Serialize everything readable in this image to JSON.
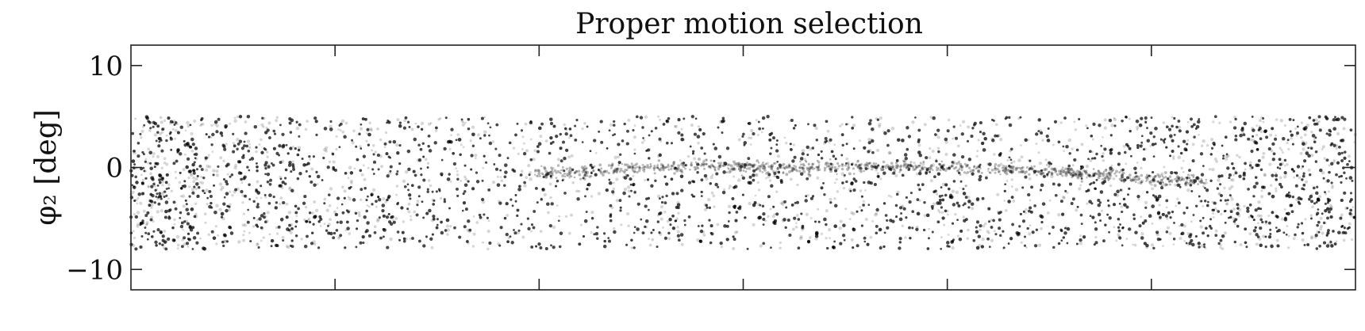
{
  "chart_data": {
    "type": "scatter",
    "title": "Proper motion selection",
    "xlabel": "",
    "ylabel": "φ₂ [deg]",
    "ylim": [
      -12,
      12
    ],
    "yticks": [
      10,
      0,
      -10
    ],
    "ytick_labels": [
      "10",
      "0",
      "−10"
    ],
    "xticks_count": 5,
    "xtick_labels": [],
    "grid": false,
    "legend": "none",
    "point_color": "#000000",
    "background_band": {
      "phi2_min": -8,
      "phi2_max": 5
    },
    "density_profile_along_x": [
      {
        "x_frac": 0.0,
        "density": 1.0
      },
      {
        "x_frac": 0.08,
        "density": 0.9
      },
      {
        "x_frac": 0.2,
        "density": 0.65
      },
      {
        "x_frac": 0.33,
        "density": 0.45
      },
      {
        "x_frac": 0.45,
        "density": 0.5
      },
      {
        "x_frac": 0.58,
        "density": 0.55
      },
      {
        "x_frac": 0.7,
        "density": 0.52
      },
      {
        "x_frac": 0.82,
        "density": 0.62
      },
      {
        "x_frac": 0.92,
        "density": 0.8
      },
      {
        "x_frac": 1.0,
        "density": 0.95
      }
    ],
    "stream_track": [
      {
        "x_frac": 0.33,
        "phi2": -0.6
      },
      {
        "x_frac": 0.4,
        "phi2": -0.2
      },
      {
        "x_frac": 0.46,
        "phi2": 0.1
      },
      {
        "x_frac": 0.55,
        "phi2": 0.0
      },
      {
        "x_frac": 0.64,
        "phi2": 0.1
      },
      {
        "x_frac": 0.7,
        "phi2": -0.1
      },
      {
        "x_frac": 0.78,
        "phi2": -0.6
      },
      {
        "x_frac": 0.84,
        "phi2": -1.2
      },
      {
        "x_frac": 0.88,
        "phi2": -1.3
      }
    ]
  }
}
